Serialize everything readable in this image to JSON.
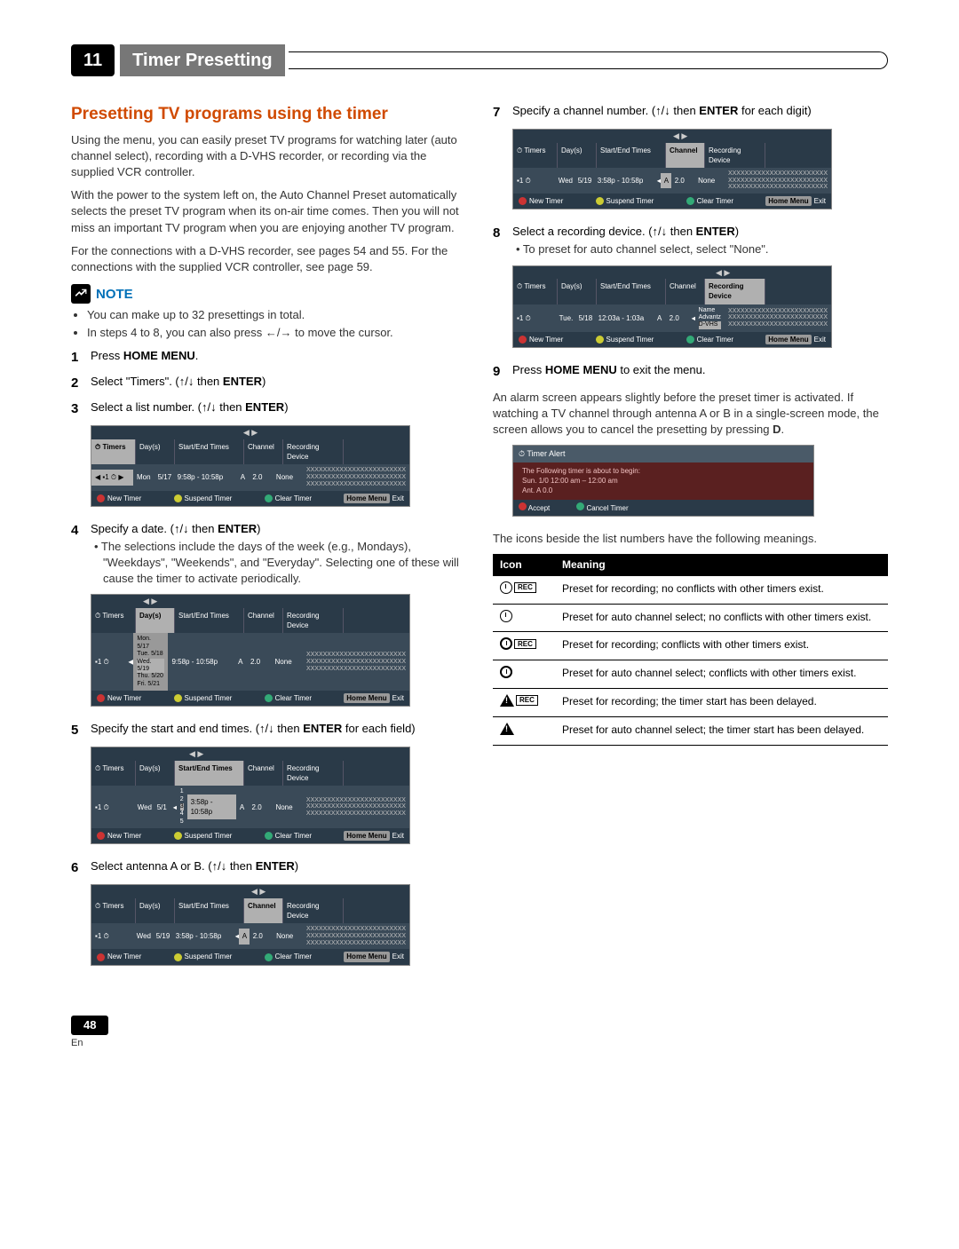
{
  "chapter": {
    "num": "11",
    "title": "Timer Presetting"
  },
  "sectionTitle": "Presetting TV programs using the timer",
  "intro1": "Using the menu, you can easily preset TV programs for watching later (auto channel select), recording with a D-VHS recorder, or recording via the supplied VCR controller.",
  "intro2": "With the power to the system left on, the Auto Channel Preset automatically selects the preset TV program when its on-air time comes. Then you will not miss an important TV program when you are enjoying another TV program.",
  "intro3": "For the connections with a D-VHS recorder, see pages 54 and 55. For the connections with the supplied VCR controller, see page 59.",
  "noteLabel": "NOTE",
  "noteItems": [
    "You can make up to 32 presettings in total.",
    "In steps 4 to 8, you can also press ←/→ to move the cursor."
  ],
  "steps": {
    "s1": "Press <strong>HOME MENU</strong>.",
    "s2": "Select \"Timers\". (↑/↓ then <strong>ENTER</strong>)",
    "s3": "Select a list number. (↑/↓ then <strong>ENTER</strong>)",
    "s4": "Specify a date. (↑/↓ then <strong>ENTER</strong>)",
    "s4sub": "• The selections include the days of the week (e.g., Mondays), \"Weekdays\", \"Weekends\", and \"Everyday\". Selecting one of these will cause the timer to activate periodically.",
    "s5": "Specify the start and end times. (↑/↓ then <strong>ENTER</strong> for each field)",
    "s6": "Select antenna A or B. (↑/↓ then <strong>ENTER</strong>)",
    "s7": "Specify a channel number. (↑/↓ then <strong>ENTER</strong> for each digit)",
    "s8": "Select a recording device. (↑/↓ then <strong>ENTER</strong>)",
    "s8sub": "• To preset for auto channel select, select \"None\".",
    "s9": "Press <strong>HOME MENU</strong> to exit the menu."
  },
  "afterSteps": "An alarm screen appears slightly before the preset timer is activated. If watching a TV channel through antenna A or B in a single-screen mode, the screen allows you to cancel the presetting by pressing <strong>D</strong>.",
  "iconIntro": "The icons beside the list numbers have the following meanings.",
  "shot": {
    "headers": {
      "timers": "Timers",
      "days": "Day(s)",
      "times": "Start/End Times",
      "channel": "Channel",
      "device": "Recording Device"
    },
    "row3": {
      "num": "▪1",
      "icon": "⏱",
      "day": "Mon",
      "date": "5/17",
      "time": "9:58p - 10:58p",
      "ant": "A",
      "ch": "2.0",
      "dev": "None"
    },
    "row4": {
      "num": "▪1",
      "icon": "⏱",
      "day": "Wed.",
      "date": "5/19",
      "time": "9:58p - 10:58p",
      "ant": "A",
      "ch": "2.0",
      "dev": "None"
    },
    "dayOpts": [
      [
        "Mon.",
        "5/17"
      ],
      [
        "Tue.",
        "5/18"
      ],
      [
        "Wed.",
        "5/19"
      ],
      [
        "Thu.",
        "5/20"
      ],
      [
        "Fri.",
        "5/21"
      ]
    ],
    "row5": {
      "num": "▪1",
      "icon": "⏱",
      "day": "Wed",
      "date": "5/1",
      "time": "3:58p - 10:58p",
      "ant": "A",
      "ch": "2.0",
      "dev": "None"
    },
    "numOpts": [
      "1",
      "2",
      "3",
      "4",
      "5"
    ],
    "row6": {
      "num": "▪1",
      "icon": "⏱",
      "day": "Wed",
      "date": "5/19",
      "time": "3:58p - 10:58p",
      "ant": "A",
      "ch": "2.0",
      "dev": "None"
    },
    "row7": {
      "num": "▪1",
      "icon": "⏱",
      "day": "Wed",
      "date": "5/19",
      "time": "3:58p - 10:58p",
      "ant": "A",
      "ch": "2.0",
      "dev": "None"
    },
    "row8": {
      "num": "▪1",
      "icon": "⏱",
      "day": "Tue.",
      "date": "5/18",
      "time": "12:03a - 1:03a",
      "ant": "A",
      "ch": "2.0"
    },
    "devOpts": [
      "Name",
      "Advantz",
      "D-VHS"
    ],
    "placeholder": "XXXXXXXXXXXXXXXXXXXXXXXX",
    "foot": {
      "a": "New Timer",
      "b": "Suspend Timer",
      "d": "Clear Timer",
      "hm": "Home Menu",
      "exit": "Exit"
    }
  },
  "timerAlert": {
    "title": "Timer Alert",
    "line1": "The Following timer is about to begin:",
    "line2": "Sun. 1/0  12:00 am – 12:00 am",
    "line3": "Ant. A 0.0",
    "accept": "Accept",
    "cancel": "Cancel Timer"
  },
  "iconTable": {
    "hIcon": "Icon",
    "hMeaning": "Meaning",
    "rows": [
      {
        "meaning": "Preset for recording; no conflicts with other timers exist."
      },
      {
        "meaning": "Preset for auto channel select; no conflicts with other timers exist."
      },
      {
        "meaning": "Preset for recording; conflicts with other timers exist."
      },
      {
        "meaning": "Preset for auto channel select; conflicts with other timers exist."
      },
      {
        "meaning": "Preset for recording; the timer start has been delayed."
      },
      {
        "meaning": "Preset for auto channel select; the timer start has been delayed."
      }
    ]
  },
  "pageNum": "48",
  "pageLang": "En"
}
